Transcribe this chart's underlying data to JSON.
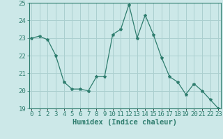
{
  "x": [
    0,
    1,
    2,
    3,
    4,
    5,
    6,
    7,
    8,
    9,
    10,
    11,
    12,
    13,
    14,
    15,
    16,
    17,
    18,
    19,
    20,
    21,
    22,
    23
  ],
  "y": [
    23,
    23.1,
    22.9,
    22,
    20.5,
    20.1,
    20.1,
    20,
    20.8,
    20.8,
    23.2,
    23.5,
    24.9,
    23.0,
    24.3,
    23.2,
    21.9,
    20.8,
    20.5,
    19.8,
    20.4,
    20.0,
    19.5,
    19.0
  ],
  "line_color": "#2e7d6e",
  "marker": "*",
  "marker_size": 3,
  "bg_color": "#cce8e8",
  "grid_color": "#aacfcf",
  "xlabel": "Humidex (Indice chaleur)",
  "ylim": [
    19,
    25
  ],
  "xlim": [
    -0.3,
    23.3
  ],
  "yticks": [
    19,
    20,
    21,
    22,
    23,
    24,
    25
  ],
  "tick_color": "#2e7d6e",
  "tick_fontsize": 6.5,
  "xlabel_fontsize": 7.5
}
